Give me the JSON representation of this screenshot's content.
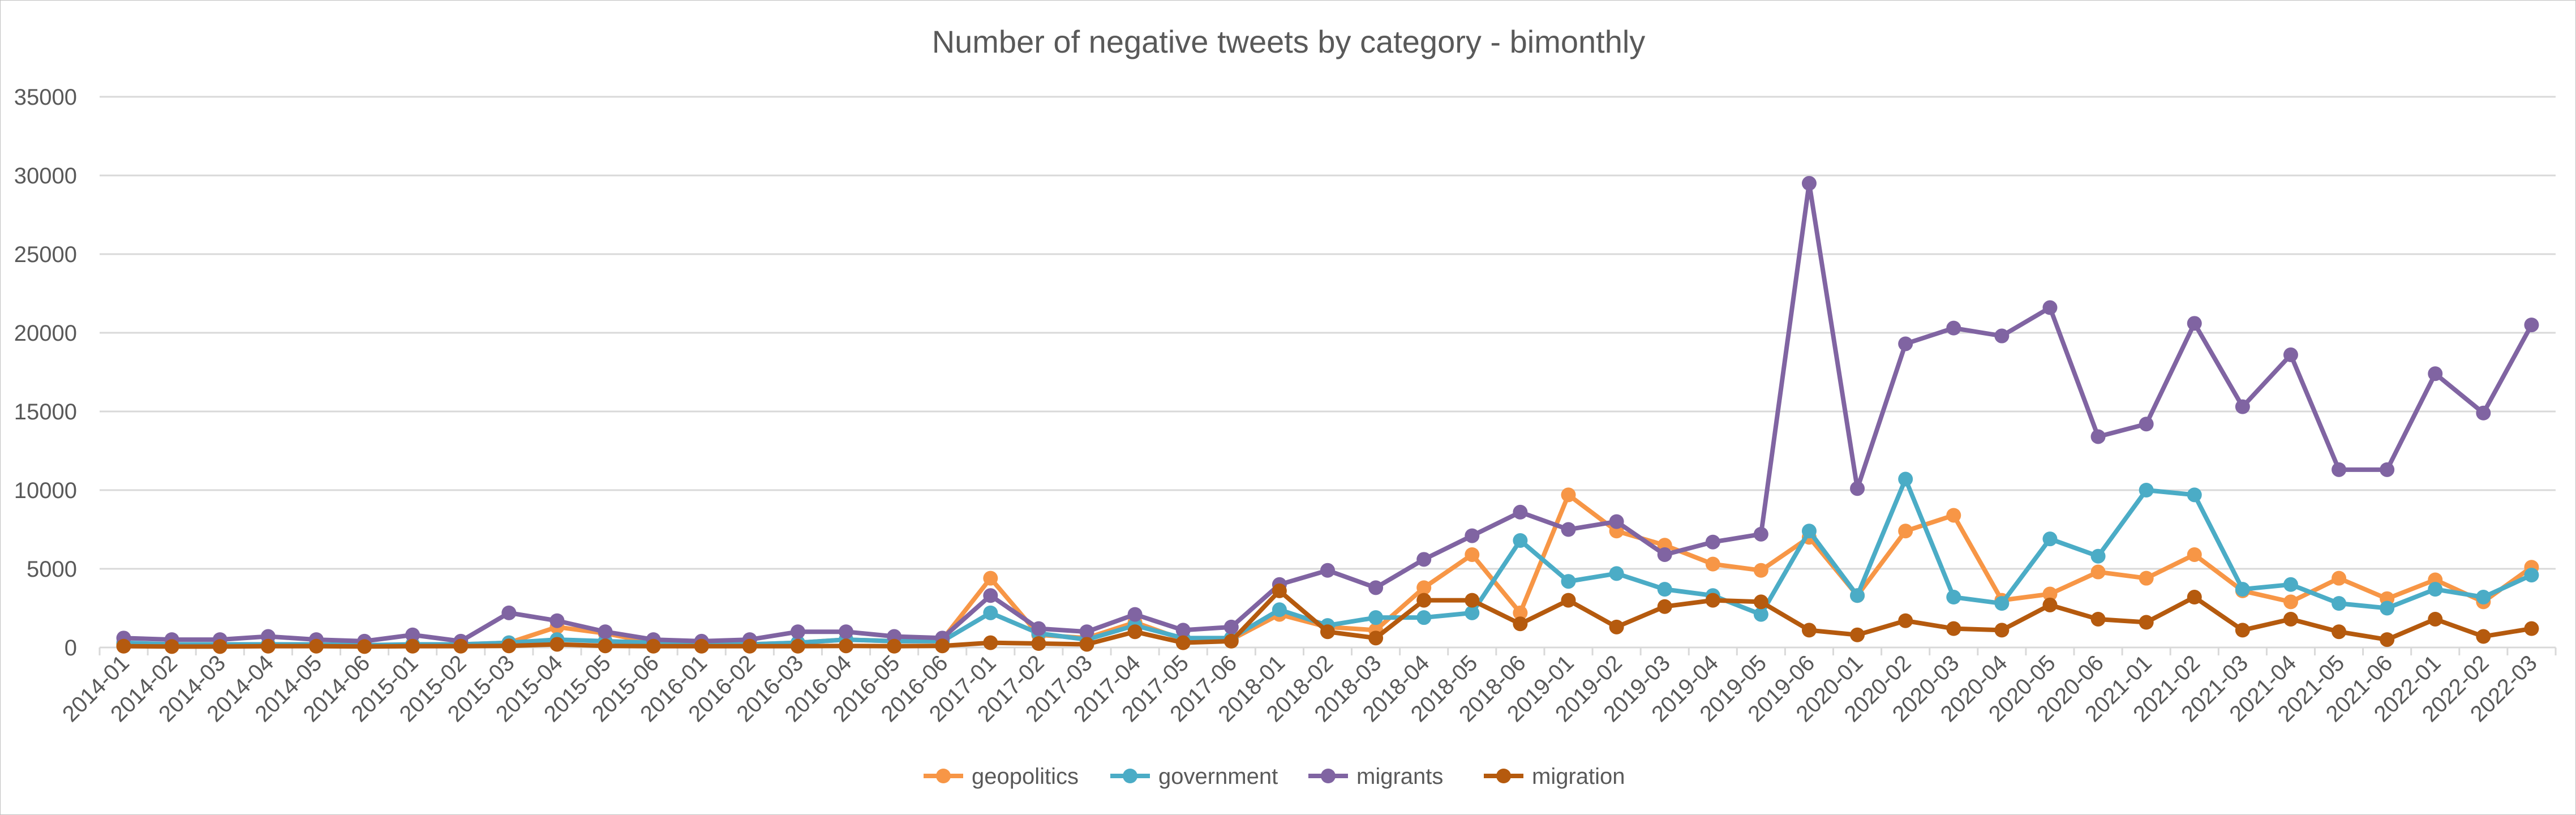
{
  "chart_data": {
    "type": "line",
    "title": "Number of negative tweets by category - bimonthly",
    "xlabel": "",
    "ylabel": "",
    "ylim": [
      0,
      35000
    ],
    "yticks": [
      0,
      5000,
      10000,
      15000,
      20000,
      25000,
      30000,
      35000
    ],
    "grid": true,
    "legend_position": "bottom",
    "categories": [
      "2014-01",
      "2014-02",
      "2014-03",
      "2014-04",
      "2014-05",
      "2014-06",
      "2015-01",
      "2015-02",
      "2015-03",
      "2015-04",
      "2015-05",
      "2015-06",
      "2016-01",
      "2016-02",
      "2016-03",
      "2016-04",
      "2016-05",
      "2016-06",
      "2017-01",
      "2017-02",
      "2017-03",
      "2017-04",
      "2017-05",
      "2017-06",
      "2018-01",
      "2018-02",
      "2018-03",
      "2018-04",
      "2018-05",
      "2018-06",
      "2019-01",
      "2019-02",
      "2019-03",
      "2019-04",
      "2019-05",
      "2019-06",
      "2020-01",
      "2020-02",
      "2020-03",
      "2020-04",
      "2020-05",
      "2020-06",
      "2021-01",
      "2021-02",
      "2021-03",
      "2021-04",
      "2021-05",
      "2021-06",
      "2022-01",
      "2022-02",
      "2022-03"
    ],
    "series": [
      {
        "name": "geopolitics",
        "color": "#f79646",
        "values": [
          200,
          150,
          120,
          100,
          150,
          100,
          150,
          200,
          300,
          1300,
          900,
          300,
          200,
          200,
          300,
          500,
          400,
          500,
          4400,
          800,
          600,
          1600,
          500,
          500,
          2100,
          1300,
          1100,
          3800,
          5900,
          2200,
          9700,
          7400,
          6500,
          5300,
          4900,
          7000,
          3300,
          7400,
          8400,
          3000,
          3400,
          4800,
          4400,
          5900,
          3600,
          2900,
          4400,
          3100,
          4300,
          2900,
          5100
        ]
      },
      {
        "name": "government",
        "color": "#4bacc6",
        "values": [
          300,
          200,
          200,
          200,
          200,
          150,
          200,
          200,
          300,
          500,
          400,
          300,
          200,
          200,
          300,
          500,
          400,
          400,
          2200,
          900,
          500,
          1400,
          600,
          600,
          2400,
          1400,
          1900,
          1900,
          2200,
          6800,
          4200,
          4700,
          3700,
          3300,
          2100,
          7400,
          3300,
          10700,
          3200,
          2800,
          6900,
          5800,
          10000,
          9700,
          3700,
          4000,
          2800,
          2500,
          3700,
          3200,
          4600
        ]
      },
      {
        "name": "migrants",
        "color": "#8064a2",
        "values": [
          600,
          500,
          500,
          700,
          500,
          400,
          800,
          400,
          2200,
          1700,
          1000,
          500,
          400,
          500,
          1000,
          1000,
          700,
          600,
          3300,
          1200,
          1000,
          2100,
          1100,
          1300,
          4000,
          4900,
          3800,
          5600,
          7100,
          8600,
          7500,
          8000,
          5900,
          6700,
          7200,
          29500,
          10100,
          19300,
          20300,
          19800,
          21600,
          13400,
          14200,
          20600,
          15300,
          18600,
          11300,
          11300,
          17400,
          14900,
          20500
        ]
      },
      {
        "name": "migration",
        "color": "#b55a0e",
        "values": [
          80,
          60,
          60,
          80,
          80,
          60,
          80,
          80,
          100,
          200,
          100,
          80,
          80,
          80,
          80,
          100,
          80,
          100,
          300,
          250,
          200,
          1000,
          300,
          400,
          3600,
          1000,
          600,
          3000,
          3000,
          1500,
          3000,
          1300,
          2600,
          3000,
          2900,
          1100,
          800,
          1700,
          1200,
          1100,
          2700,
          1800,
          1600,
          3200,
          1100,
          1800,
          1000,
          500,
          1800,
          700,
          1200
        ]
      }
    ]
  }
}
